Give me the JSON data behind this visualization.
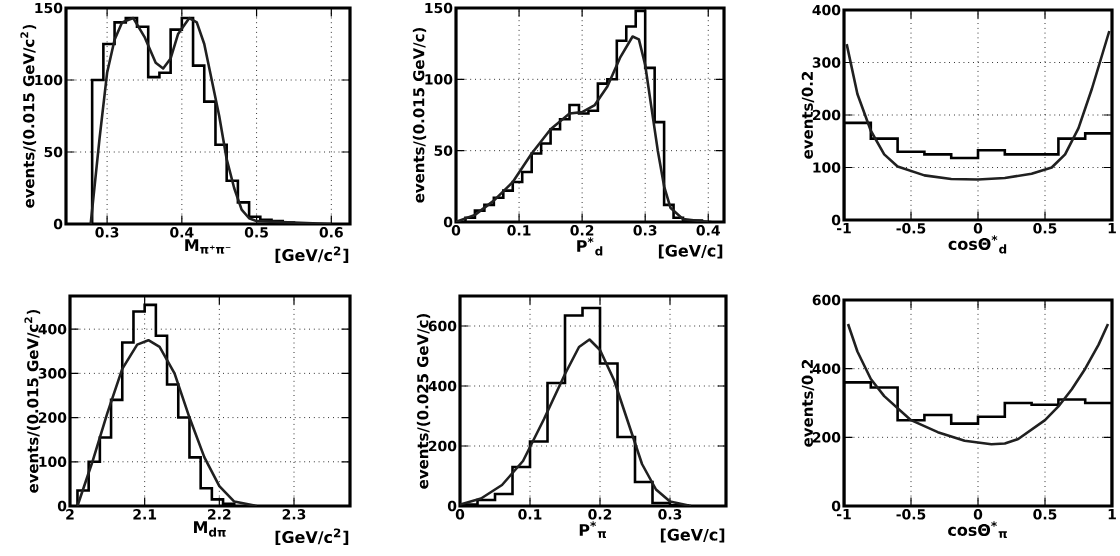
{
  "chart_data": [
    {
      "type": "histogram",
      "xlabel": "M$_{π⁺π⁻}$",
      "ylabel": "events/(0.015 GeV/c$^{2}$)",
      "annotations": [
        "[GeV/c$^{2}$]"
      ],
      "xlim": [
        0.245,
        0.625
      ],
      "ylim": [
        0,
        150
      ],
      "xticks": [
        0.3,
        0.4,
        0.5,
        0.6
      ],
      "yticks": [
        0,
        50,
        100,
        150
      ],
      "grid": true,
      "series": [
        {
          "color": "#000000",
          "bins": [
            0.28,
            0.295,
            0.31,
            0.325,
            0.34,
            0.355,
            0.37,
            0.385,
            0.4,
            0.415,
            0.43,
            0.445,
            0.46,
            0.475,
            0.49,
            0.505,
            0.52,
            0.535,
            0.55
          ],
          "values": [
            100,
            125,
            140,
            143,
            137,
            102,
            105,
            135,
            143,
            110,
            85,
            55,
            30,
            15,
            5,
            3,
            2,
            1
          ]
        },
        {
          "type": "line",
          "color": "#202020",
          "x": [
            0.278,
            0.29,
            0.3,
            0.31,
            0.32,
            0.335,
            0.35,
            0.365,
            0.375,
            0.385,
            0.395,
            0.41,
            0.42,
            0.43,
            0.44,
            0.45,
            0.46,
            0.47,
            0.48,
            0.49,
            0.5,
            0.55,
            0.6
          ],
          "values": [
            0,
            60,
            105,
            128,
            140,
            143,
            130,
            112,
            108,
            115,
            132,
            143,
            140,
            125,
            100,
            75,
            45,
            25,
            10,
            4,
            2,
            1,
            0
          ]
        }
      ]
    },
    {
      "type": "histogram",
      "xlabel": "P$^{*}$$_{d}$",
      "ylabel": "events/(0.015 GeV/c)",
      "annotations": [
        "[GeV/c]"
      ],
      "xlim": [
        0,
        0.425
      ],
      "ylim": [
        0,
        150
      ],
      "xticks": [
        0,
        0.1,
        0.2,
        0.3,
        0.4
      ],
      "yticks": [
        0,
        50,
        100,
        150
      ],
      "grid": true,
      "series": [
        {
          "color": "#000000",
          "bins": [
            0,
            0.015,
            0.03,
            0.045,
            0.06,
            0.075,
            0.09,
            0.105,
            0.12,
            0.135,
            0.15,
            0.165,
            0.18,
            0.195,
            0.21,
            0.225,
            0.24,
            0.255,
            0.27,
            0.285,
            0.3,
            0.315,
            0.33,
            0.345,
            0.36,
            0.375,
            0.39,
            0.405
          ],
          "values": [
            0,
            3,
            8,
            12,
            17,
            22,
            28,
            35,
            48,
            55,
            65,
            72,
            82,
            76,
            78,
            97,
            100,
            127,
            137,
            148,
            108,
            70,
            12,
            3,
            1,
            1,
            0
          ]
        },
        {
          "type": "line",
          "color": "#202020",
          "x": [
            0,
            0.03,
            0.06,
            0.09,
            0.12,
            0.15,
            0.18,
            0.2,
            0.22,
            0.24,
            0.26,
            0.28,
            0.29,
            0.3,
            0.31,
            0.32,
            0.33,
            0.34,
            0.36,
            0.4
          ],
          "values": [
            0,
            5,
            15,
            28,
            48,
            65,
            76,
            77,
            82,
            95,
            115,
            130,
            128,
            110,
            80,
            50,
            25,
            10,
            2,
            0
          ]
        }
      ]
    },
    {
      "type": "histogram",
      "xlabel": "cosΘ$^{*}$$_{d}$",
      "ylabel": "events/0.2",
      "xlim": [
        -1,
        1
      ],
      "ylim": [
        0,
        400
      ],
      "xticks": [
        -1,
        -0.5,
        0,
        0.5,
        1
      ],
      "yticks": [
        0,
        100,
        200,
        300,
        400
      ],
      "grid": true,
      "series": [
        {
          "color": "#000000",
          "bins": [
            -1,
            -0.8,
            -0.6,
            -0.4,
            -0.2,
            0,
            0.2,
            0.4,
            0.6,
            0.8,
            1
          ],
          "values": [
            185,
            155,
            130,
            125,
            118,
            133,
            125,
            125,
            155,
            165
          ]
        },
        {
          "type": "line",
          "color": "#202020",
          "x": [
            -0.98,
            -0.9,
            -0.8,
            -0.7,
            -0.6,
            -0.4,
            -0.2,
            0,
            0.2,
            0.4,
            0.55,
            0.65,
            0.75,
            0.85,
            0.98
          ],
          "values": [
            335,
            240,
            170,
            125,
            102,
            85,
            78,
            77,
            80,
            88,
            100,
            125,
            175,
            250,
            360
          ]
        }
      ]
    },
    {
      "type": "histogram",
      "xlabel": "M$_{dπ}$",
      "ylabel": "events/(0.015 GeV/c$^{2}$)",
      "annotations": [
        "[GeV/c$^{2}$]"
      ],
      "xlim": [
        2,
        2.375
      ],
      "ylim": [
        0,
        475
      ],
      "xticks": [
        2,
        2.1,
        2.2,
        2.3
      ],
      "yticks": [
        0,
        100,
        200,
        300,
        400
      ],
      "grid": true,
      "series": [
        {
          "color": "#000000",
          "bins": [
            2.01,
            2.025,
            2.04,
            2.055,
            2.07,
            2.085,
            2.1,
            2.115,
            2.13,
            2.145,
            2.16,
            2.175,
            2.19,
            2.205,
            2.22
          ],
          "values": [
            35,
            100,
            155,
            240,
            370,
            440,
            455,
            385,
            275,
            200,
            110,
            40,
            15,
            5
          ]
        },
        {
          "type": "line",
          "color": "#202020",
          "x": [
            2.01,
            2.03,
            2.05,
            2.07,
            2.09,
            2.105,
            2.12,
            2.14,
            2.16,
            2.18,
            2.2,
            2.22,
            2.25
          ],
          "values": [
            0,
            100,
            210,
            310,
            365,
            375,
            360,
            300,
            200,
            110,
            45,
            10,
            0
          ]
        }
      ]
    },
    {
      "type": "histogram",
      "xlabel": "P$^{*}$$_{π}$",
      "ylabel": "events/(0.025 GeV/c)",
      "annotations": [
        "[GeV/c]"
      ],
      "xlim": [
        0,
        0.38
      ],
      "ylim": [
        0,
        700
      ],
      "xticks": [
        0,
        0.1,
        0.2,
        0.3
      ],
      "yticks": [
        0,
        200,
        400,
        600
      ],
      "grid": true,
      "series": [
        {
          "color": "#000000",
          "bins": [
            0,
            0.025,
            0.05,
            0.075,
            0.1,
            0.125,
            0.15,
            0.175,
            0.2,
            0.225,
            0.25,
            0.275,
            0.3,
            0.325
          ],
          "values": [
            5,
            20,
            40,
            130,
            215,
            410,
            635,
            660,
            475,
            230,
            80,
            10,
            2
          ]
        },
        {
          "type": "line",
          "color": "#202020",
          "x": [
            0,
            0.03,
            0.06,
            0.09,
            0.12,
            0.15,
            0.17,
            0.185,
            0.2,
            0.22,
            0.24,
            0.26,
            0.28,
            0.3,
            0.33
          ],
          "values": [
            5,
            25,
            70,
            150,
            290,
            440,
            530,
            555,
            520,
            420,
            280,
            140,
            55,
            15,
            0
          ]
        }
      ]
    },
    {
      "type": "histogram",
      "xlabel": "cosΘ$^{*}$$_{π}$",
      "ylabel": "events/0.2",
      "xlim": [
        -1,
        1
      ],
      "ylim": [
        0,
        600
      ],
      "xticks": [
        -1,
        -0.5,
        0,
        0.5,
        1
      ],
      "yticks": [
        0,
        200,
        400,
        600
      ],
      "grid": true,
      "series": [
        {
          "color": "#000000",
          "bins": [
            -1,
            -0.8,
            -0.6,
            -0.4,
            -0.2,
            0,
            0.2,
            0.4,
            0.6,
            0.8,
            1
          ],
          "values": [
            360,
            345,
            250,
            265,
            240,
            260,
            300,
            295,
            310,
            300
          ]
        },
        {
          "type": "line",
          "color": "#202020",
          "x": [
            -0.97,
            -0.9,
            -0.8,
            -0.7,
            -0.5,
            -0.3,
            -0.1,
            0.1,
            0.2,
            0.3,
            0.5,
            0.6,
            0.7,
            0.8,
            0.9,
            0.97
          ],
          "values": [
            530,
            450,
            370,
            320,
            250,
            215,
            190,
            180,
            182,
            195,
            250,
            290,
            340,
            400,
            470,
            530
          ]
        }
      ]
    }
  ]
}
